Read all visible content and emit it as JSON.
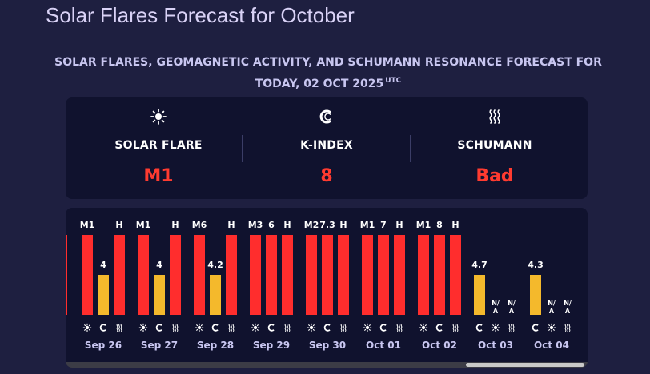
{
  "page": {
    "title": "Solar Flares Forecast for October"
  },
  "forecast": {
    "heading": "SOLAR FLARES, GEOMAGNETIC ACTIVITY, AND SCHUMANN RESONANCE FORECAST FOR TODAY, 02 OCT 2025",
    "timezone": "UTC"
  },
  "summary": {
    "solar_flare": {
      "label": "SOLAR FLARE",
      "value": "M1",
      "icon": "sun-icon"
    },
    "k_index": {
      "label": "K-INDEX",
      "value": "8",
      "icon": "magnet-icon"
    },
    "schumann": {
      "label": "SCHUMANN",
      "value": "Bad",
      "icon": "wave-icon"
    },
    "value_color": "#ff3b30"
  },
  "colors": {
    "red": "#ff2d2d",
    "yellow": "#f4b92c",
    "background": "#1e1f40",
    "card": "#10122e",
    "date_text": "#c8c6f0"
  },
  "chart_data": {
    "type": "bar",
    "note_order": [
      "solar-flare",
      "k-index",
      "schumann"
    ],
    "days": [
      {
        "date": "Sep 26",
        "bars": [
          {
            "kind": "solar-flare",
            "label": "M1",
            "level": 1.0,
            "color": "red"
          },
          {
            "kind": "k-index",
            "label": "4",
            "level": 0.5,
            "color": "yellow"
          },
          {
            "kind": "schumann",
            "label": "H",
            "level": 1.0,
            "color": "red"
          }
        ]
      },
      {
        "date": "Sep 27",
        "bars": [
          {
            "kind": "solar-flare",
            "label": "M1",
            "level": 1.0,
            "color": "red"
          },
          {
            "kind": "k-index",
            "label": "4",
            "level": 0.5,
            "color": "yellow"
          },
          {
            "kind": "schumann",
            "label": "H",
            "level": 1.0,
            "color": "red"
          }
        ]
      },
      {
        "date": "Sep 28",
        "bars": [
          {
            "kind": "solar-flare",
            "label": "M6",
            "level": 1.0,
            "color": "red"
          },
          {
            "kind": "k-index",
            "label": "4.2",
            "level": 0.5,
            "color": "yellow"
          },
          {
            "kind": "schumann",
            "label": "H",
            "level": 1.0,
            "color": "red"
          }
        ]
      },
      {
        "date": "Sep 29",
        "bars": [
          {
            "kind": "solar-flare",
            "label": "M3",
            "level": 1.0,
            "color": "red"
          },
          {
            "kind": "k-index",
            "label": "6",
            "level": 1.0,
            "color": "red"
          },
          {
            "kind": "schumann",
            "label": "H",
            "level": 1.0,
            "color": "red"
          }
        ]
      },
      {
        "date": "Sep 30",
        "bars": [
          {
            "kind": "solar-flare",
            "label": "M2",
            "level": 1.0,
            "color": "red"
          },
          {
            "kind": "k-index",
            "label": "7.3",
            "level": 1.0,
            "color": "red"
          },
          {
            "kind": "schumann",
            "label": "H",
            "level": 1.0,
            "color": "red"
          }
        ]
      },
      {
        "date": "Oct 01",
        "bars": [
          {
            "kind": "solar-flare",
            "label": "M1",
            "level": 1.0,
            "color": "red"
          },
          {
            "kind": "k-index",
            "label": "7",
            "level": 1.0,
            "color": "red"
          },
          {
            "kind": "schumann",
            "label": "H",
            "level": 1.0,
            "color": "red"
          }
        ]
      },
      {
        "date": "Oct 02",
        "bars": [
          {
            "kind": "solar-flare",
            "label": "M1",
            "level": 1.0,
            "color": "red"
          },
          {
            "kind": "k-index",
            "label": "8",
            "level": 1.0,
            "color": "red"
          },
          {
            "kind": "schumann",
            "label": "H",
            "level": 1.0,
            "color": "red"
          }
        ]
      },
      {
        "date": "Oct 03",
        "bars": [
          {
            "kind": "k-index",
            "label": "4.7",
            "level": 0.5,
            "color": "yellow"
          },
          {
            "kind": "solar-flare",
            "label": "N/A",
            "level": 0,
            "color": "none"
          },
          {
            "kind": "schumann",
            "label": "N/A",
            "level": 0,
            "color": "none"
          }
        ]
      },
      {
        "date": "Oct 04",
        "bars": [
          {
            "kind": "k-index",
            "label": "4.3",
            "level": 0.5,
            "color": "yellow"
          },
          {
            "kind": "solar-flare",
            "label": "N/A",
            "level": 0,
            "color": "none"
          },
          {
            "kind": "schumann",
            "label": "N/A",
            "level": 0,
            "color": "none"
          }
        ]
      }
    ],
    "scroll_position": 0.77
  }
}
